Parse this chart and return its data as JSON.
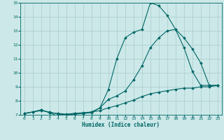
{
  "xlabel": "Humidex (Indice chaleur)",
  "xlim": [
    -0.5,
    23.5
  ],
  "ylim": [
    7,
    15
  ],
  "background_color": "#cce8e8",
  "grid_color": "#aacccc",
  "line_color": "#006666",
  "series1_x": [
    0,
    1,
    2,
    3,
    4,
    5,
    6,
    7,
    8,
    9,
    10,
    11,
    12,
    13,
    14,
    15,
    16,
    17,
    18,
    19,
    20,
    21,
    22,
    23
  ],
  "series1_y": [
    7.1,
    7.2,
    7.35,
    7.15,
    6.9,
    7.0,
    7.05,
    7.1,
    7.15,
    7.5,
    8.8,
    11.0,
    12.5,
    12.9,
    13.1,
    15.0,
    14.8,
    14.1,
    13.1,
    11.8,
    10.1,
    9.1,
    9.1,
    9.1
  ],
  "series2_x": [
    0,
    1,
    2,
    3,
    4,
    5,
    6,
    7,
    8,
    9,
    10,
    11,
    12,
    13,
    14,
    15,
    16,
    17,
    18,
    19,
    20,
    21,
    22,
    23
  ],
  "series2_y": [
    7.1,
    7.2,
    7.35,
    7.15,
    7.1,
    7.05,
    7.1,
    7.15,
    7.2,
    7.5,
    8.1,
    8.35,
    8.7,
    9.5,
    10.5,
    11.8,
    12.5,
    13.0,
    13.1,
    12.5,
    11.7,
    10.7,
    9.1,
    9.1
  ],
  "series3_x": [
    0,
    1,
    2,
    3,
    4,
    5,
    6,
    7,
    8,
    9,
    10,
    11,
    12,
    13,
    14,
    15,
    16,
    17,
    18,
    19,
    20,
    21,
    22,
    23
  ],
  "series3_y": [
    7.1,
    7.2,
    7.3,
    7.2,
    7.05,
    7.0,
    7.1,
    7.1,
    7.2,
    7.3,
    7.5,
    7.65,
    7.85,
    8.05,
    8.3,
    8.5,
    8.62,
    8.72,
    8.82,
    8.9,
    8.9,
    9.0,
    9.0,
    9.1
  ]
}
